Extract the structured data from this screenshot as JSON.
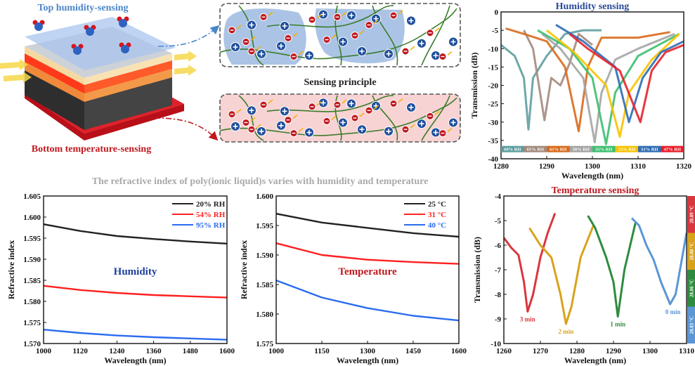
{
  "diagram": {
    "top_label": "Top humidity-sensing",
    "bottom_label": "Bottom temperature-sensing",
    "principle_label": "Sensing principle",
    "caption": "The refractive index of poly(ionic liquid)s varies with humidity and temperature",
    "colors": {
      "humidity": "#4a86c8",
      "temperature": "#c0181f",
      "cation": "#1f4e9c",
      "anion": "#c0181f",
      "chain": "#3a7d2c"
    }
  },
  "chart_data": [
    {
      "type": "line",
      "title": "Humidity sensing",
      "xlabel": "Wavelength (nm)",
      "ylabel": "Transmission (dB)",
      "xlim": [
        1280,
        1320
      ],
      "ylim": [
        -40,
        0
      ],
      "xticks": [
        1280,
        1290,
        1300,
        1310,
        1320
      ],
      "yticks": [
        0,
        -5,
        -10,
        -15,
        -20,
        -25,
        -30,
        -35,
        -40
      ],
      "legend": "bottom color bar inside plot",
      "series": [
        {
          "name": "69% RH",
          "color": "#5f9ea0",
          "x": [
            1280,
            1283,
            1285,
            1286,
            1287,
            1290,
            1294,
            1298,
            1302
          ],
          "y": [
            -9,
            -12,
            -18,
            -32,
            -18,
            -12,
            -6,
            -5,
            -5
          ]
        },
        {
          "name": "65% RH",
          "color": "#a38a7e",
          "x": [
            1285,
            1287,
            1289.5,
            1291,
            1293,
            1295,
            1297,
            1300
          ],
          "y": [
            -5,
            -10,
            -29.5,
            -18,
            -20,
            -14,
            -6,
            -9
          ]
        },
        {
          "name": "61% RH",
          "color": "#d86a1c",
          "x": [
            1281,
            1285,
            1290,
            1294,
            1297,
            1299,
            1302,
            1310,
            1317
          ],
          "y": [
            -4.5,
            -6,
            -8,
            -15,
            -32.5,
            -15,
            -7,
            -7,
            -5.5
          ]
        },
        {
          "name": "58% RH",
          "color": "#a5a5a5",
          "x": [
            1289,
            1293,
            1298,
            1300.5,
            1302,
            1305,
            1310,
            1318
          ],
          "y": [
            -6,
            -10,
            -18,
            -35.5,
            -22,
            -13,
            -10,
            -6
          ]
        },
        {
          "name": "55% RH",
          "color": "#3cbf6e",
          "x": [
            1288,
            1295,
            1300,
            1303,
            1305,
            1310,
            1319
          ],
          "y": [
            -5,
            -10,
            -18,
            -36,
            -22,
            -12,
            -6
          ]
        },
        {
          "name": "53% RH",
          "color": "#f7c300",
          "x": [
            1290,
            1296,
            1303,
            1306,
            1308,
            1313,
            1319
          ],
          "y": [
            -5,
            -11,
            -20,
            -34,
            -22,
            -13,
            -6
          ]
        },
        {
          "name": "51% RH",
          "color": "#2e6db4",
          "x": [
            1292,
            1298,
            1305,
            1308,
            1311,
            1315,
            1320
          ],
          "y": [
            -3.5,
            -8,
            -15,
            -30,
            -18,
            -11,
            -8
          ]
        },
        {
          "name": "47% RH",
          "color": "#e8202a",
          "x": [
            1295,
            1299,
            1306,
            1310.5,
            1313,
            1316,
            1320
          ],
          "y": [
            -6,
            -10,
            -16,
            -30,
            -16,
            -11,
            -9
          ]
        }
      ]
    },
    {
      "type": "line",
      "title": "Temperature sensing",
      "xlabel": "Wavelength (nm)",
      "ylabel": "Transmission (dB)",
      "xlim": [
        1260,
        1310
      ],
      "ylim": [
        -10,
        -4
      ],
      "xticks": [
        1260,
        1270,
        1280,
        1290,
        1300,
        1310
      ],
      "yticks": [
        -4,
        -5,
        -6,
        -7,
        -8,
        -9,
        -10
      ],
      "legend": "right color bar",
      "series": [
        {
          "name": "3 min",
          "temperature": "28.89 °C",
          "color": "#d9363e",
          "x": [
            1260,
            1262,
            1264,
            1265.5,
            1266.5,
            1268,
            1270,
            1272,
            1274
          ],
          "y": [
            -5.7,
            -6.1,
            -6.4,
            -7.5,
            -8.7,
            -8,
            -6.5,
            -5.5,
            -4.7
          ]
        },
        {
          "name": "2 min",
          "temperature": "28.88 °C",
          "color": "#d9a21b",
          "x": [
            1267,
            1270,
            1273,
            1275.5,
            1277,
            1278.5,
            1281,
            1284.5
          ],
          "y": [
            -5.3,
            -6,
            -6.5,
            -8,
            -9.2,
            -8.5,
            -6.5,
            -5.2
          ]
        },
        {
          "name": "1 min",
          "temperature": "28.86 °C",
          "color": "#2e8b3e",
          "x": [
            1283,
            1285,
            1288,
            1290,
            1291.2,
            1293,
            1296
          ],
          "y": [
            -4.8,
            -5.3,
            -6.5,
            -7.5,
            -8.9,
            -7,
            -5.1
          ]
        },
        {
          "name": "0 min",
          "temperature": "28.83 °C",
          "color": "#5b96d6",
          "x": [
            1295,
            1297,
            1299,
            1301,
            1303,
            1305.5,
            1307,
            1310
          ],
          "y": [
            -4.9,
            -5.2,
            -6,
            -6.6,
            -7.5,
            -8.4,
            -8,
            -5.5
          ]
        }
      ]
    },
    {
      "type": "line",
      "annotation": "Humidity",
      "xlabel": "Wavelength (nm)",
      "ylabel": "Refractive index",
      "xlim": [
        1000,
        1600
      ],
      "ylim": [
        1.57,
        1.605
      ],
      "xticks": [
        1000,
        1120,
        1240,
        1360,
        1480,
        1600
      ],
      "yticks": [
        "1.570",
        "1.575",
        "1.580",
        "1.585",
        "1.590",
        "1.595",
        "1.600",
        "1.605"
      ],
      "legend": "top-right",
      "series": [
        {
          "name": "20% RH",
          "color": "#222222",
          "x": [
            1000,
            1120,
            1240,
            1360,
            1480,
            1600
          ],
          "y": [
            1.5983,
            1.5967,
            1.5955,
            1.5948,
            1.5942,
            1.5937
          ]
        },
        {
          "name": "54% RH",
          "color": "#ff2020",
          "x": [
            1000,
            1120,
            1240,
            1360,
            1480,
            1600
          ],
          "y": [
            1.5837,
            1.5827,
            1.582,
            1.5815,
            1.5812,
            1.5809
          ]
        },
        {
          "name": "95% RH",
          "color": "#2a6cf0",
          "x": [
            1000,
            1120,
            1240,
            1360,
            1480,
            1600
          ],
          "y": [
            1.5733,
            1.5725,
            1.5719,
            1.5715,
            1.5712,
            1.5709
          ]
        }
      ]
    },
    {
      "type": "line",
      "annotation": "Temperature",
      "xlabel": "Wavelength (nm)",
      "ylabel": "Refractive index",
      "xlim": [
        1000,
        1600
      ],
      "ylim": [
        1.575,
        1.6
      ],
      "xticks": [
        1000,
        1150,
        1300,
        1450,
        1600
      ],
      "yticks": [
        "1.575",
        "1.580",
        "1.585",
        "1.590",
        "1.595",
        "1.600"
      ],
      "legend": "top-right",
      "series": [
        {
          "name": "25 °C",
          "color": "#222222",
          "x": [
            1000,
            1150,
            1300,
            1450,
            1600
          ],
          "y": [
            1.597,
            1.5955,
            1.5946,
            1.5937,
            1.5931
          ]
        },
        {
          "name": "31 °C",
          "color": "#ff2020",
          "x": [
            1000,
            1150,
            1300,
            1450,
            1600
          ],
          "y": [
            1.592,
            1.59,
            1.5892,
            1.5888,
            1.5885
          ]
        },
        {
          "name": "40 °C",
          "color": "#2a6cf0",
          "x": [
            1000,
            1150,
            1300,
            1450,
            1600
          ],
          "y": [
            1.5857,
            1.5828,
            1.581,
            1.5797,
            1.5789
          ]
        }
      ]
    }
  ]
}
